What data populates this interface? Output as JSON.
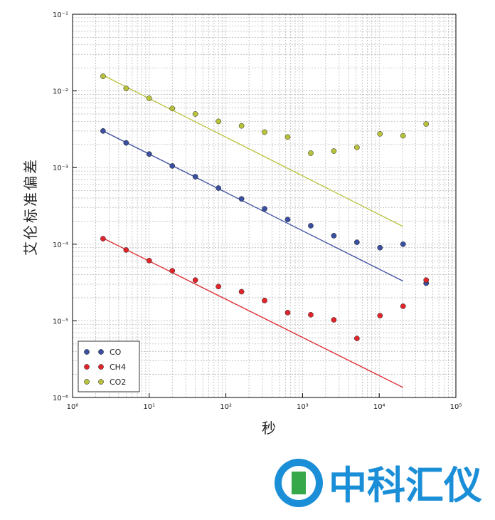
{
  "chart_data": {
    "type": "scatter",
    "xlabel": "秒",
    "ylabel": "艾伦标准偏差",
    "log_x": true,
    "log_y": true,
    "grid": true,
    "legend": "lower left",
    "xlim": [
      1,
      100000
    ],
    "ylim": [
      1e-06,
      0.1
    ],
    "xticks": [
      {
        "value": 1,
        "label": "10⁰"
      },
      {
        "value": 10,
        "label": "10¹"
      },
      {
        "value": 100,
        "label": "10²"
      },
      {
        "value": 1000,
        "label": "10³"
      },
      {
        "value": 10000,
        "label": "10⁴"
      },
      {
        "value": 100000,
        "label": "10⁵"
      }
    ],
    "yticks": [
      {
        "value": 1e-06,
        "label": "10⁻⁶"
      },
      {
        "value": 1e-05,
        "label": "10⁻⁵"
      },
      {
        "value": 0.0001,
        "label": "10⁻⁴"
      },
      {
        "value": 0.001,
        "label": "10⁻³"
      },
      {
        "value": 0.01,
        "label": "10⁻²"
      },
      {
        "value": 0.1,
        "label": "10⁻¹"
      }
    ],
    "x": [
      2.5,
      5,
      10,
      20,
      40,
      80,
      160,
      320,
      640,
      1280,
      2560,
      5120,
      10240,
      20480,
      40960
    ],
    "series": [
      {
        "name": "CO",
        "color": "#3a4fa0",
        "values": [
          0.003,
          0.0021,
          0.0015,
          0.00105,
          0.00076,
          0.00054,
          0.00039,
          0.00029,
          0.00021,
          0.000174,
          0.000129,
          0.000106,
          9e-05,
          0.0001,
          3.1e-05
        ],
        "fit": {
          "x": [
            2.5,
            20480
          ],
          "values": [
            0.003,
            3.3e-05
          ]
        }
      },
      {
        "name": "CH4",
        "color": "#e0252b",
        "values": [
          0.000118,
          8.4e-05,
          6.1e-05,
          4.5e-05,
          3.4e-05,
          2.8e-05,
          2.4e-05,
          1.84e-05,
          1.28e-05,
          1.2e-05,
          1.03e-05,
          5.9e-06,
          1.17e-05,
          1.55e-05,
          3.4e-05
        ],
        "fit": {
          "x": [
            2.5,
            20480
          ],
          "values": [
            0.00012,
            1.35e-06
          ]
        }
      },
      {
        "name": "CO2",
        "color": "#b8c23a",
        "values": [
          0.0155,
          0.0108,
          0.008,
          0.0059,
          0.005,
          0.004,
          0.0035,
          0.0029,
          0.0025,
          0.00154,
          0.00164,
          0.00183,
          0.00275,
          0.0026,
          0.0037
        ],
        "fit": {
          "x": [
            2.5,
            20480
          ],
          "values": [
            0.016,
            0.00017
          ]
        }
      }
    ]
  },
  "watermark": "中科汇仪"
}
